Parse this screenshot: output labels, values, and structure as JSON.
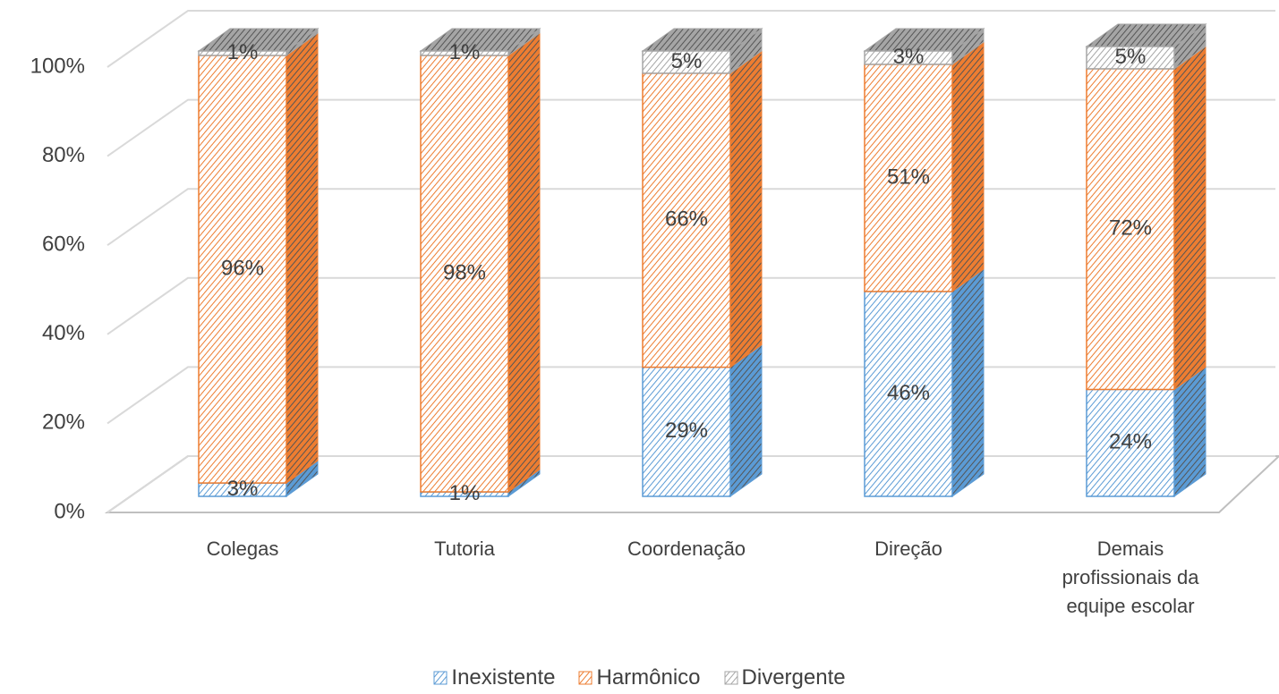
{
  "chart_data": {
    "type": "bar3d_stacked",
    "categories": [
      "Colegas",
      "Tutoria",
      "Coordenação",
      "Direção",
      "Demais profissionais da equipe escolar"
    ],
    "series": [
      {
        "name": "Inexistente",
        "color": "#5b9bd5",
        "values": [
          3,
          1,
          29,
          46,
          24
        ],
        "value_labels": [
          "3%",
          "1%",
          "29%",
          "46%",
          "24%"
        ]
      },
      {
        "name": "Harmônico",
        "color": "#ed7d31",
        "values": [
          96,
          98,
          66,
          51,
          72
        ],
        "value_labels": [
          "96%",
          "98%",
          "66%",
          "51%",
          "72%"
        ]
      },
      {
        "name": "Divergente",
        "color": "#a5a5a5",
        "values": [
          1,
          1,
          5,
          3,
          5
        ],
        "value_labels": [
          "1%",
          "1%",
          "5%",
          "3%",
          "5%"
        ]
      }
    ],
    "ylim": [
      0,
      100
    ],
    "yticks": [
      {
        "value": 0,
        "label": "0%"
      },
      {
        "value": 20,
        "label": "20%"
      },
      {
        "value": 40,
        "label": "40%"
      },
      {
        "value": 60,
        "label": "60%"
      },
      {
        "value": 80,
        "label": "80%"
      },
      {
        "value": 100,
        "label": "100%"
      }
    ],
    "grid": true,
    "legend": "bottom"
  }
}
